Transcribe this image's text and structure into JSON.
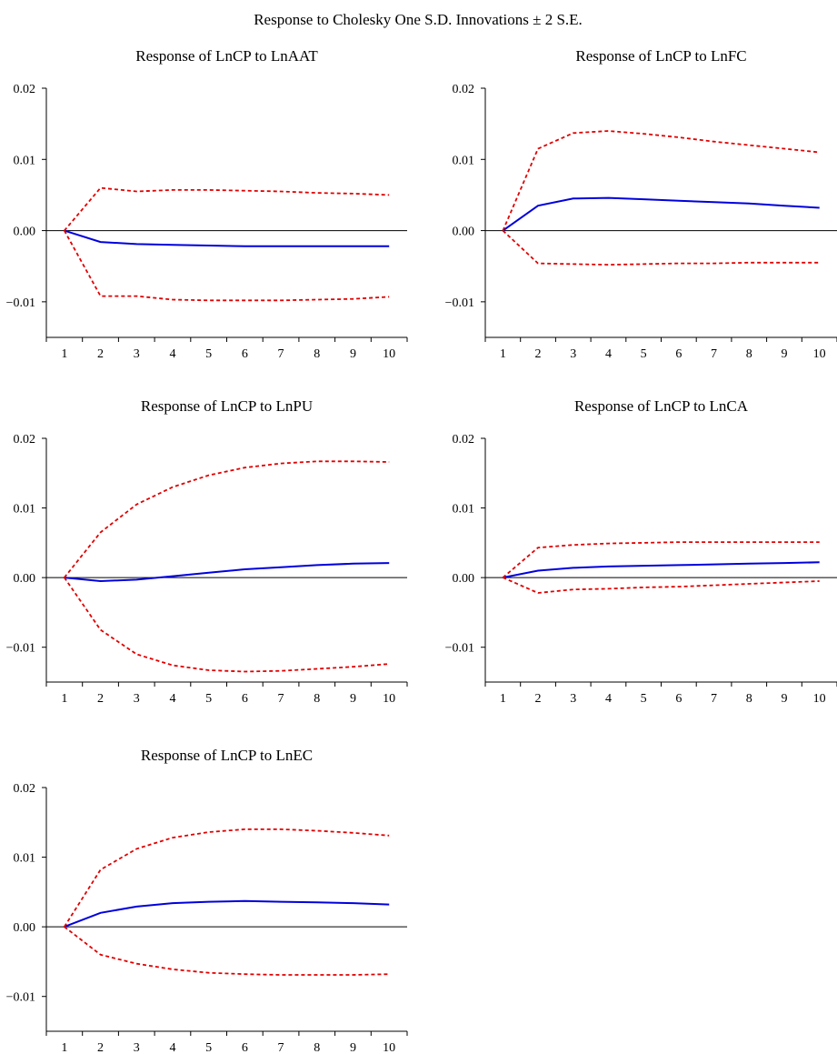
{
  "figure": {
    "title": "Response to Cholesky One S.D. Innovations ± 2 S.E."
  },
  "colors": {
    "response": "#0000dd",
    "bands": "#e00000",
    "axis": "#000000"
  },
  "chart_data": [
    {
      "type": "line",
      "title": "Response of LnCP to LnAAT",
      "x": [
        1,
        2,
        3,
        4,
        5,
        6,
        7,
        8,
        9,
        10
      ],
      "ylim": [
        -0.015,
        0.02
      ],
      "yticks": [
        -0.01,
        0.0,
        0.01,
        0.02
      ],
      "ytick_labels": [
        "−0.01",
        "0.00",
        "0.01",
        "0.02"
      ],
      "series": [
        {
          "role": "response",
          "values": [
            0,
            -0.0016,
            -0.0019,
            -0.002,
            -0.0021,
            -0.0022,
            -0.0022,
            -0.0022,
            -0.0022,
            -0.0022
          ]
        },
        {
          "role": "upper",
          "values": [
            0,
            0.006,
            0.0055,
            0.0057,
            0.0057,
            0.0056,
            0.0055,
            0.0053,
            0.0052,
            0.005
          ]
        },
        {
          "role": "lower",
          "values": [
            0,
            -0.0092,
            -0.0092,
            -0.0097,
            -0.0098,
            -0.0098,
            -0.0098,
            -0.0097,
            -0.0096,
            -0.0093
          ]
        }
      ]
    },
    {
      "type": "line",
      "title": "Response of LnCP to LnFC",
      "x": [
        1,
        2,
        3,
        4,
        5,
        6,
        7,
        8,
        9,
        10
      ],
      "ylim": [
        -0.015,
        0.02
      ],
      "yticks": [
        -0.01,
        0.0,
        0.01,
        0.02
      ],
      "ytick_labels": [
        "−0.01",
        "0.00",
        "0.01",
        "0.02"
      ],
      "series": [
        {
          "role": "response",
          "values": [
            0,
            0.0035,
            0.0045,
            0.0046,
            0.0044,
            0.0042,
            0.004,
            0.0038,
            0.0035,
            0.0032
          ]
        },
        {
          "role": "upper",
          "values": [
            0,
            0.0115,
            0.0137,
            0.014,
            0.0136,
            0.0131,
            0.0125,
            0.012,
            0.0115,
            0.011
          ]
        },
        {
          "role": "lower",
          "values": [
            0,
            -0.0046,
            -0.0047,
            -0.0048,
            -0.0047,
            -0.0046,
            -0.0046,
            -0.0045,
            -0.0045,
            -0.0045
          ]
        }
      ]
    },
    {
      "type": "line",
      "title": "Response of LnCP to LnPU",
      "x": [
        1,
        2,
        3,
        4,
        5,
        6,
        7,
        8,
        9,
        10
      ],
      "ylim": [
        -0.015,
        0.02
      ],
      "yticks": [
        -0.01,
        0.0,
        0.01,
        0.02
      ],
      "ytick_labels": [
        "−0.01",
        "0.00",
        "0.01",
        "0.02"
      ],
      "series": [
        {
          "role": "response",
          "values": [
            0,
            -0.0005,
            -0.0003,
            0.0002,
            0.0007,
            0.0012,
            0.0015,
            0.0018,
            0.002,
            0.0021
          ]
        },
        {
          "role": "upper",
          "values": [
            0,
            0.0065,
            0.0105,
            0.013,
            0.0147,
            0.0158,
            0.0164,
            0.0167,
            0.0167,
            0.0166
          ]
        },
        {
          "role": "lower",
          "values": [
            0,
            -0.0075,
            -0.011,
            -0.0126,
            -0.0133,
            -0.0135,
            -0.0134,
            -0.0131,
            -0.0128,
            -0.0124
          ]
        }
      ]
    },
    {
      "type": "line",
      "title": "Response of LnCP to LnCA",
      "x": [
        1,
        2,
        3,
        4,
        5,
        6,
        7,
        8,
        9,
        10
      ],
      "ylim": [
        -0.015,
        0.02
      ],
      "yticks": [
        -0.01,
        0.0,
        0.01,
        0.02
      ],
      "ytick_labels": [
        "−0.01",
        "0.00",
        "0.01",
        "0.02"
      ],
      "series": [
        {
          "role": "response",
          "values": [
            0,
            0.001,
            0.0014,
            0.0016,
            0.0017,
            0.0018,
            0.0019,
            0.002,
            0.0021,
            0.0022
          ]
        },
        {
          "role": "upper",
          "values": [
            0,
            0.0043,
            0.0047,
            0.0049,
            0.005,
            0.0051,
            0.0051,
            0.0051,
            0.0051,
            0.0051
          ]
        },
        {
          "role": "lower",
          "values": [
            0,
            -0.0022,
            -0.0017,
            -0.0016,
            -0.0014,
            -0.0013,
            -0.0011,
            -0.0009,
            -0.0007,
            -0.0005
          ]
        }
      ]
    },
    {
      "type": "line",
      "title": "Response of LnCP to LnEC",
      "x": [
        1,
        2,
        3,
        4,
        5,
        6,
        7,
        8,
        9,
        10
      ],
      "ylim": [
        -0.015,
        0.02
      ],
      "yticks": [
        -0.01,
        0.0,
        0.01,
        0.02
      ],
      "ytick_labels": [
        "−0.01",
        "0.00",
        "0.01",
        "0.02"
      ],
      "series": [
        {
          "role": "response",
          "values": [
            0,
            0.002,
            0.0029,
            0.0034,
            0.0036,
            0.0037,
            0.0036,
            0.0035,
            0.0034,
            0.0032
          ]
        },
        {
          "role": "upper",
          "values": [
            0,
            0.0082,
            0.0112,
            0.0128,
            0.0136,
            0.014,
            0.014,
            0.0138,
            0.0135,
            0.0131
          ]
        },
        {
          "role": "lower",
          "values": [
            0,
            -0.004,
            -0.0053,
            -0.0061,
            -0.0066,
            -0.0068,
            -0.0069,
            -0.0069,
            -0.0069,
            -0.0068
          ]
        }
      ]
    }
  ]
}
